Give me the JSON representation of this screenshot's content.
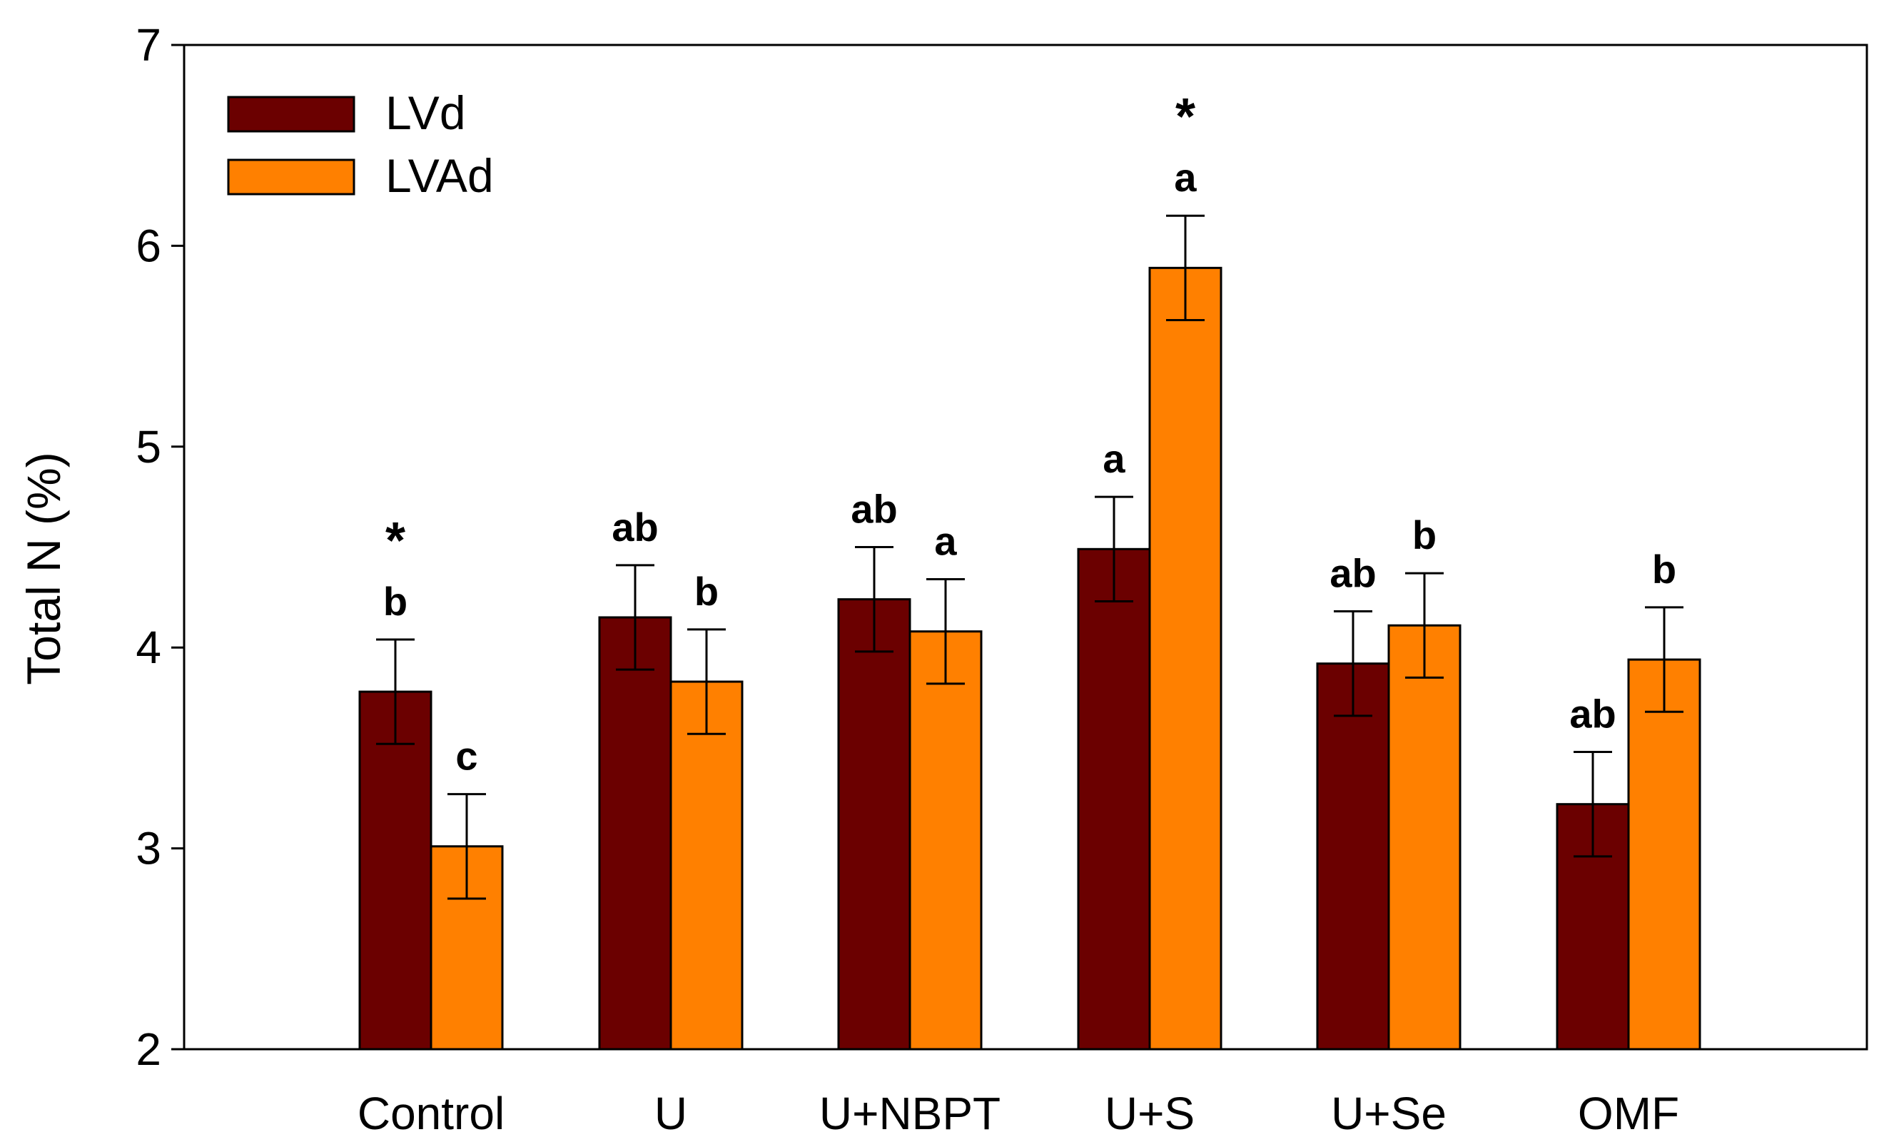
{
  "chart_data": {
    "type": "bar",
    "title": "",
    "xlabel": "",
    "ylabel": "Total N (%)",
    "ylim": [
      2,
      7
    ],
    "yticks": [
      2,
      3,
      4,
      5,
      6,
      7
    ],
    "grid": false,
    "legend_position": "top-left",
    "categories": [
      "Control",
      "U",
      "U+NBPT",
      "U+S",
      "U+Se",
      "OMF"
    ],
    "series": [
      {
        "name": "LVd",
        "color": "#6b0000",
        "values": [
          3.78,
          4.15,
          4.24,
          4.49,
          3.92,
          3.22
        ],
        "errors": [
          0.26,
          0.26,
          0.26,
          0.26,
          0.26,
          0.26
        ],
        "letters": [
          "b",
          "ab",
          "ab",
          "a",
          "ab",
          "ab"
        ],
        "stars": [
          "*",
          "",
          "",
          "",
          "",
          ""
        ]
      },
      {
        "name": "LVAd",
        "color": "#ff8000",
        "values": [
          3.01,
          3.83,
          4.08,
          5.89,
          4.11,
          3.94
        ],
        "errors": [
          0.26,
          0.26,
          0.26,
          0.26,
          0.26,
          0.26
        ],
        "letters": [
          "c",
          "b",
          "a",
          "a",
          "b",
          "b"
        ],
        "stars": [
          "",
          "",
          "",
          "*",
          "",
          ""
        ]
      }
    ]
  }
}
